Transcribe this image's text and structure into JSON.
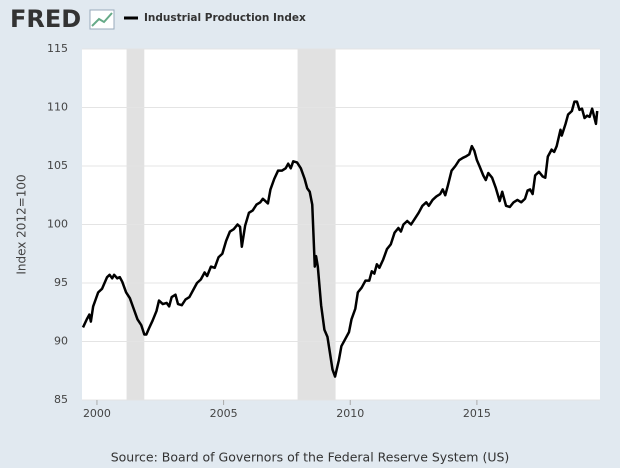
{
  "header": {
    "logo": "FRED"
  },
  "chart_data": {
    "type": "line",
    "y_label": "Index 2012=100",
    "source": "Source: Board of Governors of the Federal Reserve System (US)",
    "x": [
      1999.45,
      1999.6,
      1999.7,
      1999.76,
      1999.85,
      1999.95,
      2000.05,
      2000.2,
      2000.3,
      2000.4,
      2000.5,
      2000.6,
      2000.68,
      2000.8,
      2000.9,
      2001.0,
      2001.15,
      2001.3,
      2001.45,
      2001.6,
      2001.75,
      2001.87,
      2001.95,
      2002.05,
      2002.2,
      2002.35,
      2002.45,
      2002.6,
      2002.75,
      2002.85,
      2002.95,
      2003.1,
      2003.2,
      2003.35,
      2003.5,
      2003.65,
      2003.8,
      2003.95,
      2004.1,
      2004.25,
      2004.35,
      2004.5,
      2004.65,
      2004.8,
      2004.95,
      2005.1,
      2005.25,
      2005.4,
      2005.55,
      2005.65,
      2005.72,
      2005.85,
      2006.0,
      2006.15,
      2006.3,
      2006.45,
      2006.55,
      2006.65,
      2006.75,
      2006.85,
      2007.0,
      2007.15,
      2007.3,
      2007.45,
      2007.55,
      2007.65,
      2007.75,
      2007.9,
      2008.05,
      2008.2,
      2008.3,
      2008.4,
      2008.5,
      2008.6,
      2008.65,
      2008.72,
      2008.85,
      2008.98,
      2009.1,
      2009.2,
      2009.3,
      2009.4,
      2009.55,
      2009.65,
      2009.8,
      2009.95,
      2010.05,
      2010.2,
      2010.3,
      2010.45,
      2010.6,
      2010.75,
      2010.85,
      2010.95,
      2011.05,
      2011.15,
      2011.3,
      2011.45,
      2011.6,
      2011.75,
      2011.9,
      2012.0,
      2012.1,
      2012.25,
      2012.4,
      2012.55,
      2012.7,
      2012.85,
      2013.0,
      2013.1,
      2013.25,
      2013.4,
      2013.55,
      2013.65,
      2013.75,
      2013.85,
      2014.0,
      2014.15,
      2014.3,
      2014.45,
      2014.55,
      2014.7,
      2014.8,
      2014.9,
      2015.0,
      2015.1,
      2015.25,
      2015.35,
      2015.45,
      2015.6,
      2015.75,
      2015.9,
      2016.0,
      2016.15,
      2016.3,
      2016.45,
      2016.6,
      2016.75,
      2016.9,
      2017.0,
      2017.1,
      2017.2,
      2017.3,
      2017.45,
      2017.6,
      2017.7,
      2017.8,
      2017.95,
      2018.05,
      2018.15,
      2018.3,
      2018.35,
      2018.5,
      2018.6,
      2018.75,
      2018.85,
      2018.95,
      2019.05,
      2019.15,
      2019.25,
      2019.35,
      2019.45,
      2019.55,
      2019.62,
      2019.7,
      2019.75
    ],
    "series": [
      {
        "name": "Industrial Production Index",
        "color": "#000000",
        "values": [
          91.2,
          91.9,
          92.3,
          91.7,
          93.0,
          93.6,
          94.2,
          94.5,
          95.0,
          95.5,
          95.7,
          95.4,
          95.7,
          95.4,
          95.5,
          95.1,
          94.2,
          93.7,
          92.8,
          91.9,
          91.4,
          90.6,
          90.6,
          91.1,
          91.8,
          92.6,
          93.5,
          93.2,
          93.3,
          93.0,
          93.8,
          94.0,
          93.2,
          93.1,
          93.6,
          93.8,
          94.4,
          95.0,
          95.3,
          95.9,
          95.6,
          96.4,
          96.3,
          97.2,
          97.5,
          98.6,
          99.4,
          99.6,
          100.0,
          99.8,
          98.1,
          99.9,
          101.0,
          101.2,
          101.7,
          101.9,
          102.2,
          102.0,
          101.8,
          103.0,
          103.9,
          104.6,
          104.6,
          104.8,
          105.2,
          104.8,
          105.4,
          105.3,
          104.8,
          103.9,
          103.1,
          102.8,
          101.7,
          96.4,
          97.3,
          96.4,
          93.1,
          91.0,
          90.4,
          89.0,
          87.6,
          87.0,
          88.4,
          89.6,
          90.2,
          90.8,
          91.9,
          92.8,
          94.2,
          94.6,
          95.2,
          95.2,
          96.0,
          95.8,
          96.6,
          96.3,
          97.0,
          97.9,
          98.3,
          99.3,
          99.7,
          99.4,
          100.0,
          100.3,
          100.0,
          100.5,
          101.0,
          101.6,
          101.9,
          101.6,
          102.1,
          102.4,
          102.6,
          103.0,
          102.5,
          103.3,
          104.6,
          105.0,
          105.5,
          105.7,
          105.8,
          106.0,
          106.7,
          106.3,
          105.5,
          105.0,
          104.2,
          103.8,
          104.4,
          104.0,
          103.1,
          102.0,
          102.8,
          101.6,
          101.5,
          101.9,
          102.1,
          101.9,
          102.2,
          102.9,
          103.0,
          102.6,
          104.2,
          104.5,
          104.1,
          104.0,
          105.8,
          106.4,
          106.2,
          106.7,
          108.1,
          107.6,
          108.6,
          109.4,
          109.7,
          110.5,
          110.5,
          109.8,
          109.9,
          109.1,
          109.3,
          109.2,
          109.9,
          109.3,
          108.6,
          109.7
        ]
      }
    ],
    "recessions": [
      [
        2001.17,
        2001.87
      ],
      [
        2007.92,
        2009.42
      ]
    ],
    "recession_color": "#e1e1e1",
    "xlim": [
      1999.41,
      2019.86
    ],
    "xticks": [
      2000,
      2005,
      2010,
      2015
    ],
    "ylim": [
      85,
      115
    ],
    "yticks": [
      85,
      90,
      95,
      100,
      105,
      110,
      115
    ],
    "grid": true
  }
}
